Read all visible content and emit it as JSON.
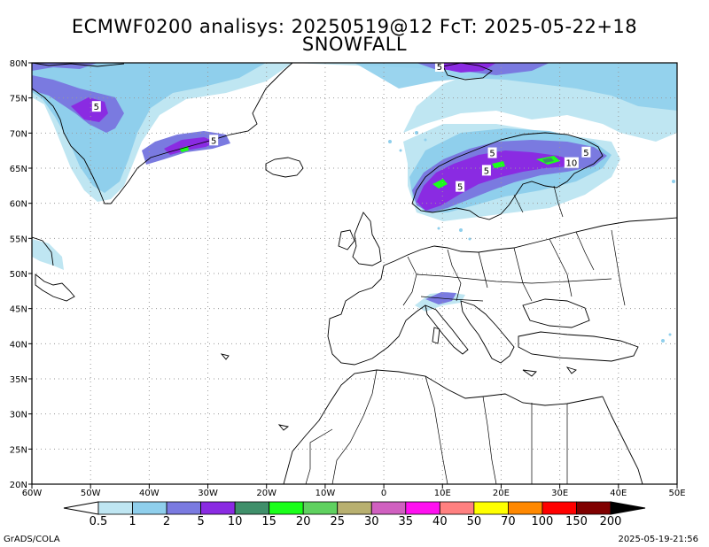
{
  "title": {
    "line1": "ECMWF0200 analisys: 20250519@12 FcT: 2025-05-22+18",
    "line2": "SNOWFALL"
  },
  "axes": {
    "lon_ticks": [
      "60W",
      "50W",
      "40W",
      "30W",
      "20W",
      "10W",
      "0",
      "10E",
      "20E",
      "30E",
      "40E",
      "50E"
    ],
    "lat_ticks": [
      "80N",
      "75N",
      "70N",
      "65N",
      "60N",
      "55N",
      "50N",
      "45N",
      "40N",
      "35N",
      "30N",
      "25N",
      "20N"
    ]
  },
  "colorbar": {
    "labels": [
      "0.5",
      "1",
      "2",
      "5",
      "10",
      "15",
      "20",
      "25",
      "30",
      "35",
      "40",
      "50",
      "70",
      "100",
      "150",
      "200"
    ],
    "colors": [
      "#bfe6f2",
      "#8fcfec",
      "#7a7ae0",
      "#8a2be2",
      "#3f8f6a",
      "#1aff1a",
      "#5fd15f",
      "#b8b070",
      "#d060c0",
      "#ff10f0",
      "#ff8080",
      "#ffff00",
      "#ff8800",
      "#ff0000",
      "#800000"
    ],
    "under_color": "#ffffff",
    "over_color": "#000000"
  },
  "contour_labels": [
    {
      "text": "5",
      "lon": -49,
      "lat": 73.8
    },
    {
      "text": "5",
      "lon": -29,
      "lat": 69
    },
    {
      "text": "5",
      "lon": 9.5,
      "lat": 79.5
    },
    {
      "text": "5",
      "lon": 18.5,
      "lat": 67.2
    },
    {
      "text": "5",
      "lon": 17.5,
      "lat": 64.7
    },
    {
      "text": "5",
      "lon": 13,
      "lat": 62.4
    },
    {
      "text": "10",
      "lon": 32,
      "lat": 65.8
    },
    {
      "text": "5",
      "lon": 34.5,
      "lat": 67.3
    }
  ],
  "footer": {
    "left": "GrADS/COLA",
    "right": "2025-05-19-21:56"
  }
}
